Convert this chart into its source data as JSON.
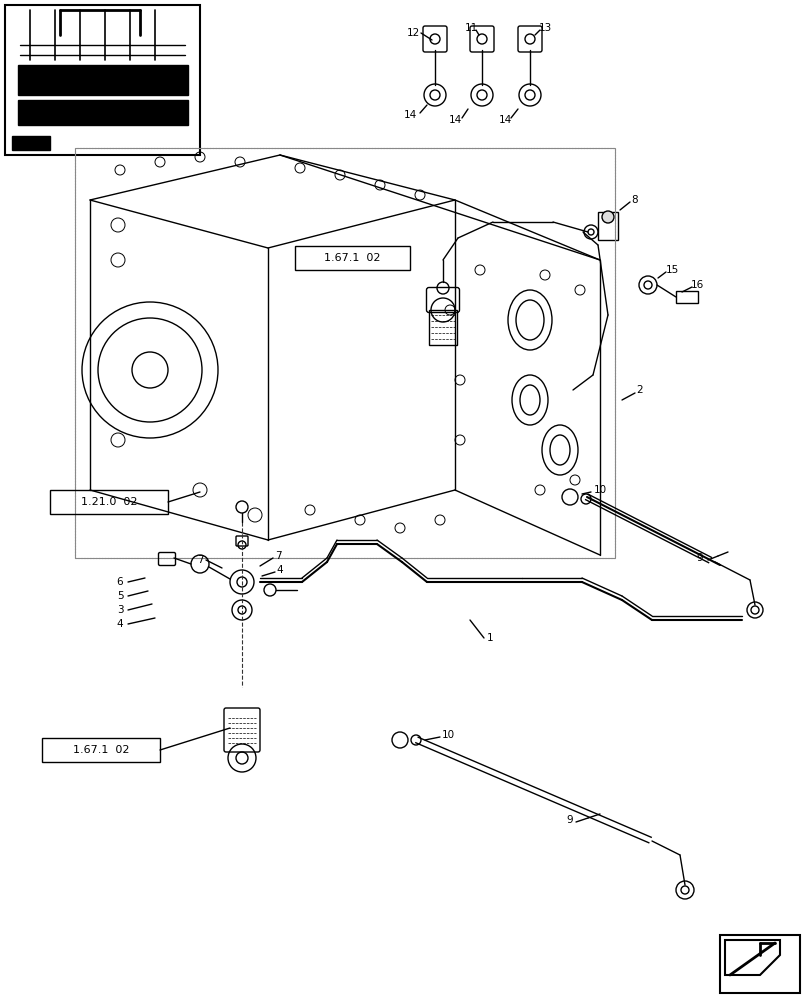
{
  "bg_color": "#ffffff",
  "line_color": "#000000",
  "line_width": 1.0,
  "fig_width": 8.08,
  "fig_height": 10.0
}
